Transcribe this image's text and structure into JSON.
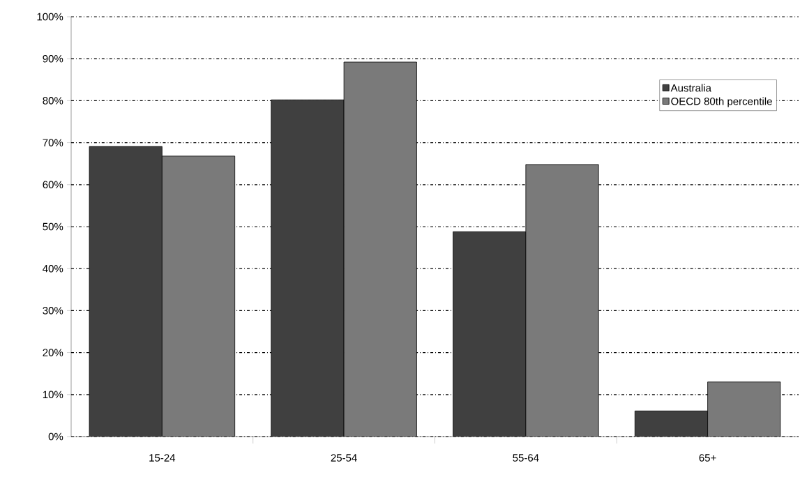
{
  "chart_data": {
    "type": "bar",
    "categories": [
      "15-24",
      "25-54",
      "55-64",
      "65+"
    ],
    "series": [
      {
        "name": "Australia",
        "color": "#404040",
        "values": [
          69.1,
          80.2,
          48.8,
          6.1
        ]
      },
      {
        "name": "OECD 80th percentile",
        "color": "#7a7a7a",
        "values": [
          66.8,
          89.2,
          64.8,
          13.0
        ]
      }
    ],
    "ylim": [
      0,
      100
    ],
    "yticks": [
      {
        "value": 0,
        "label": "0%"
      },
      {
        "value": 10,
        "label": "10%"
      },
      {
        "value": 20,
        "label": "20%"
      },
      {
        "value": 30,
        "label": "30%"
      },
      {
        "value": 40,
        "label": "40%"
      },
      {
        "value": 50,
        "label": "50%"
      },
      {
        "value": 60,
        "label": "60%"
      },
      {
        "value": 70,
        "label": "70%"
      },
      {
        "value": 80,
        "label": "80%"
      },
      {
        "value": 90,
        "label": "90%"
      },
      {
        "value": 100,
        "label": "100%"
      }
    ],
    "grid": "y",
    "legend": "top right"
  }
}
